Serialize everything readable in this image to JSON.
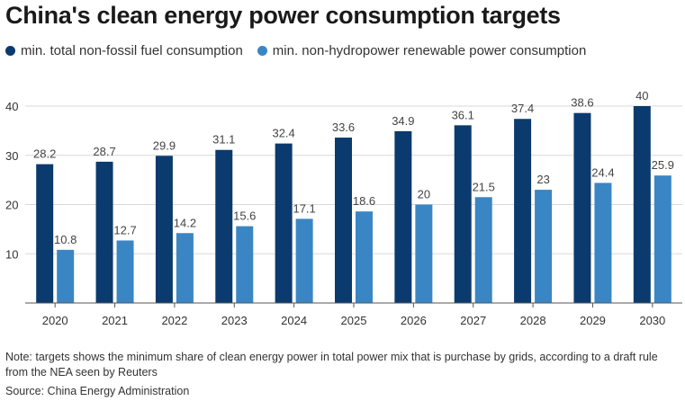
{
  "title": "China's clean energy power consumption targets",
  "note": "Note: targets shows the minimum share of clean energy power in total power mix that is purchase by grids, according to a draft rule from the NEA seen by Reuters",
  "source": "Source: China Energy Administration",
  "colors": {
    "series_1": "#0b3a6e",
    "series_2": "#3a86c4",
    "gridline": "#d9d9d9",
    "axis": "#555555"
  },
  "chart_data": {
    "type": "bar",
    "title": "China's clean energy power consumption targets",
    "xlabel": "",
    "ylabel": "",
    "ylim": [
      0,
      40
    ],
    "yticks": [
      10,
      20,
      30,
      40
    ],
    "grid": true,
    "legend_position": "top-left",
    "categories": [
      "2020",
      "2021",
      "2022",
      "2023",
      "2024",
      "2025",
      "2026",
      "2027",
      "2028",
      "2029",
      "2030"
    ],
    "series": [
      {
        "name": "min. total non-fossil fuel consumption",
        "values": [
          28.2,
          28.7,
          29.9,
          31.1,
          32.4,
          33.6,
          34.9,
          36.1,
          37.4,
          38.6,
          40
        ],
        "labels": [
          "28.2",
          "28.7",
          "29.9",
          "31.1",
          "32.4",
          "33.6",
          "34.9",
          "36.1",
          "37.4",
          "38.6",
          "40"
        ]
      },
      {
        "name": "min. non-hydropower renewable power consumption",
        "values": [
          10.8,
          12.7,
          14.2,
          15.6,
          17.1,
          18.6,
          20,
          21.5,
          23,
          24.4,
          25.9
        ],
        "labels": [
          "10.8",
          "12.7",
          "14.2",
          "15.6",
          "17.1",
          "18.6",
          "20",
          "21.5",
          "23",
          "24.4",
          "25.9"
        ]
      }
    ]
  }
}
